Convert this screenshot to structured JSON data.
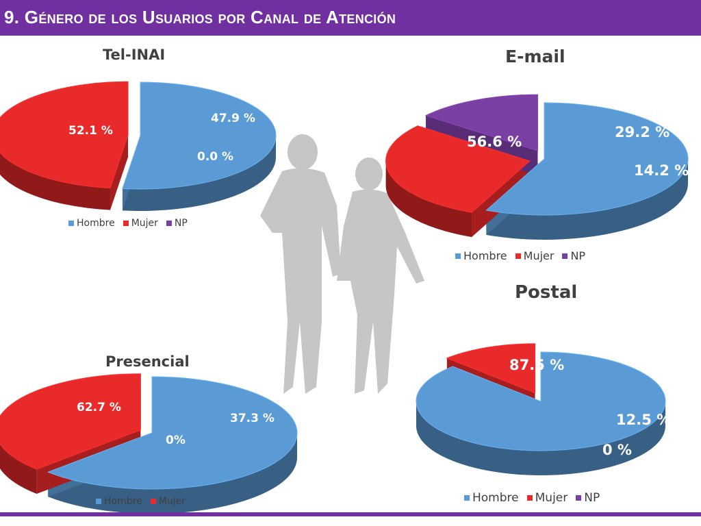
{
  "header": {
    "title": "9. Género de los Usuarios por Canal de Atención"
  },
  "colors": {
    "Hombre": "#5b9bd5",
    "Mujer": "#e82a2a",
    "NP": "#7a3fa3",
    "bar": "#7030a0"
  },
  "decoration": "couple-silhouette",
  "chart_data": [
    {
      "type": "pie",
      "title": "Tel-INAI",
      "categories": [
        "Hombre",
        "Mujer",
        "NP"
      ],
      "values": [
        52.1,
        47.9,
        0.0
      ],
      "labels": [
        "52.1 %",
        "47.9 %",
        "0.0 %"
      ],
      "legend": [
        "Hombre",
        "Mujer",
        "NP"
      ],
      "legend_position": "bottom"
    },
    {
      "type": "pie",
      "title": "E-mail",
      "categories": [
        "Hombre",
        "Mujer",
        "NP"
      ],
      "values": [
        56.6,
        29.2,
        14.2
      ],
      "labels": [
        "56.6 %",
        "29.2 %",
        "14.2 %"
      ],
      "legend": [
        "Hombre",
        "Mujer",
        "NP"
      ],
      "legend_position": "bottom"
    },
    {
      "type": "pie",
      "title": "Presencial",
      "categories": [
        "Hombre",
        "Mujer",
        "NP"
      ],
      "values": [
        62.7,
        37.3,
        0
      ],
      "labels": [
        "62.7 %",
        "37.3 %",
        "0%"
      ],
      "legend": [
        "Hombre",
        "Mujer"
      ],
      "legend_position": "bottom"
    },
    {
      "type": "pie",
      "title": "Postal",
      "categories": [
        "Hombre",
        "Mujer",
        "NP"
      ],
      "values": [
        87.5,
        12.5,
        0
      ],
      "labels": [
        "87.5 %",
        "12.5 %",
        "0 %"
      ],
      "legend": [
        "Hombre",
        "Mujer",
        "NP"
      ],
      "legend_position": "bottom"
    }
  ]
}
